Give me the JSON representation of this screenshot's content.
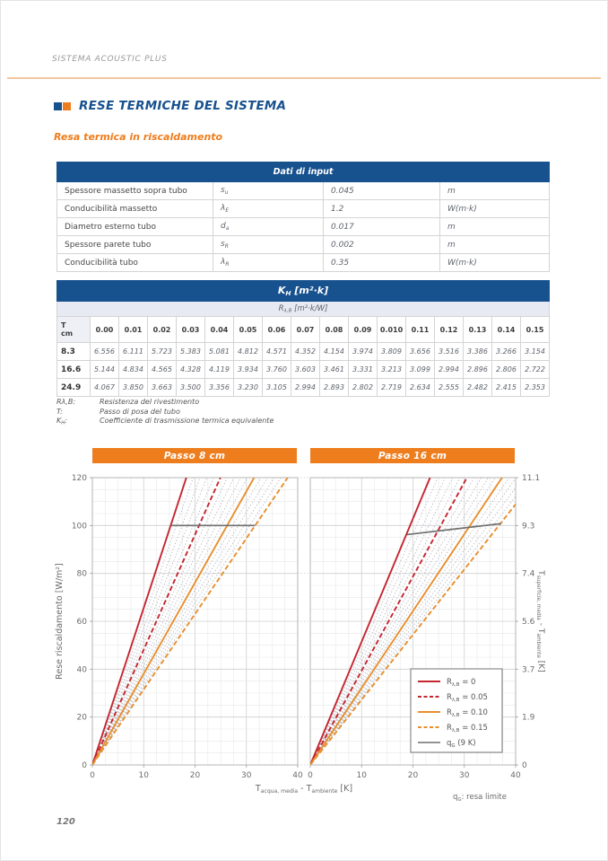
{
  "page": {
    "header_text": "SISTEMA ACOUSTIC PLUS",
    "section_title": "RESE TERMICHE DEL SISTEMA",
    "subsection_title": "Resa termica in riscaldamento",
    "page_number": "120"
  },
  "colors": {
    "blue": "#17518e",
    "orange": "#ee7d1d",
    "red_line": "#c42630",
    "orange_line": "#e78f2e",
    "gray_line": "#6f6f6f",
    "fan_line": "#a9adb8",
    "band_light": "#e8eaf3",
    "header_rule": "#f2c79c"
  },
  "input_table": {
    "title": "Dati di input",
    "rows": [
      {
        "label": "Spessore massetto sopra tubo",
        "symbol": [
          {
            "t": "s"
          },
          {
            "s": "u"
          }
        ],
        "value": "0.045",
        "unit": "m"
      },
      {
        "label": "Conducibilità massetto",
        "symbol": [
          {
            "t": "λ"
          },
          {
            "s": "E"
          }
        ],
        "value": "1.2",
        "unit": "W(m·k)"
      },
      {
        "label": "Diametro esterno tubo",
        "symbol": [
          {
            "t": "d"
          },
          {
            "s": "a"
          }
        ],
        "value": "0.017",
        "unit": "m"
      },
      {
        "label": "Spessore parete tubo",
        "symbol": [
          {
            "t": "s"
          },
          {
            "s": "R"
          }
        ],
        "value": "0.002",
        "unit": "m"
      },
      {
        "label": "Conducibilità tubo",
        "symbol": [
          {
            "t": "λ"
          },
          {
            "s": "R"
          }
        ],
        "value": "0.35",
        "unit": "W(m·k)"
      }
    ]
  },
  "kh_table": {
    "title": [
      {
        "t": "K"
      },
      {
        "s": "H"
      },
      {
        "t": " [m²·k]"
      }
    ],
    "subtitle": [
      {
        "t": "R"
      },
      {
        "s": "λ,B"
      },
      {
        "t": " [m²·k/W]"
      }
    ],
    "corner_line1": "T",
    "corner_line2": "cm",
    "columns": [
      "0.00",
      "0.01",
      "0.02",
      "0.03",
      "0.04",
      "0.05",
      "0.06",
      "0.07",
      "0.08",
      "0.09",
      "0.010",
      "0.11",
      "0.12",
      "0.13",
      "0.14",
      "0.15"
    ],
    "rows": [
      {
        "t": "8.3",
        "values": [
          "6.556",
          "6.111",
          "5.723",
          "5.383",
          "5.081",
          "4.812",
          "4.571",
          "4.352",
          "4.154",
          "3.974",
          "3.809",
          "3.656",
          "3.516",
          "3.386",
          "3.266",
          "3.154"
        ]
      },
      {
        "t": "16.6",
        "values": [
          "5.144",
          "4.834",
          "4.565",
          "4.328",
          "4.119",
          "3.934",
          "3.760",
          "3.603",
          "3.461",
          "3.331",
          "3.213",
          "3.099",
          "2.994",
          "2.896",
          "2.806",
          "2.722"
        ]
      },
      {
        "t": "24.9",
        "values": [
          "4.067",
          "3.850",
          "3.663",
          "3.500",
          "3.356",
          "3.230",
          "3.105",
          "2.994",
          "2.893",
          "2.802",
          "2.719",
          "2.634",
          "2.555",
          "2.482",
          "2.415",
          "2.353"
        ]
      }
    ]
  },
  "footnotes": [
    {
      "term": [
        {
          "t": "Rλ,B:"
        }
      ],
      "def": "Resistenza del rivestimento"
    },
    {
      "term": [
        {
          "t": "T:"
        }
      ],
      "def": "Passo di posa del tubo"
    },
    {
      "term": [
        {
          "t": "K"
        },
        {
          "s": "H"
        },
        {
          "t": ":"
        }
      ],
      "def": "Coefficiente di trasmissione termica equivalente"
    }
  ],
  "chart_data": {
    "type": "line",
    "xlabel": [
      {
        "t": "T"
      },
      {
        "s": "acqua, media"
      },
      {
        "t": " - T"
      },
      {
        "s": "ambiente"
      },
      {
        "t": " [K]"
      }
    ],
    "ylabel_left": "Rese riscaldamento [W/m²]",
    "ylabel_right": [
      {
        "t": "T"
      },
      {
        "s": "superficie, media"
      },
      {
        "t": " - T"
      },
      {
        "s": "ambiente"
      },
      {
        "t": " [K]"
      }
    ],
    "note": [
      {
        "t": "q"
      },
      {
        "s": "G"
      },
      {
        "t": ": resa limite"
      }
    ],
    "xlim": [
      0,
      40
    ],
    "ylim": [
      0,
      120
    ],
    "x_ticks": [
      0,
      10,
      20,
      30,
      40
    ],
    "y_ticks_left": [
      0,
      20,
      40,
      60,
      80,
      100,
      120
    ],
    "y_ticks_right": [
      "0",
      "1.9",
      "3.7",
      "5.6",
      "7.4",
      "9.3",
      "11.1"
    ],
    "grid": true,
    "legend_position": "lower-right-of-second-plot",
    "legend": [
      {
        "label": [
          {
            "t": "R"
          },
          {
            "s": "λ,B"
          },
          {
            "t": " = 0"
          }
        ],
        "color": "#c42630",
        "dash": "solid"
      },
      {
        "label": [
          {
            "t": "R"
          },
          {
            "s": "λ,B"
          },
          {
            "t": " = 0.05"
          }
        ],
        "color": "#c42630",
        "dash": "dashed"
      },
      {
        "label": [
          {
            "t": "R"
          },
          {
            "s": "λ,B"
          },
          {
            "t": " = 0.10"
          }
        ],
        "color": "#e78f2e",
        "dash": "solid"
      },
      {
        "label": [
          {
            "t": "R"
          },
          {
            "s": "λ,B"
          },
          {
            "t": " = 0.15"
          }
        ],
        "color": "#e78f2e",
        "dash": "dashed"
      },
      {
        "label": [
          {
            "t": "q"
          },
          {
            "s": "G"
          },
          {
            "t": " (9 K)"
          }
        ],
        "color": "#6f6f6f",
        "dash": "solid"
      }
    ],
    "plots": [
      {
        "title": "Passo 8 cm",
        "series": [
          {
            "name": "R_λ,B = 0",
            "slope": 6.556,
            "color": "#c42630",
            "dash": "solid"
          },
          {
            "name": "R_λ,B = 0.05",
            "slope": 4.812,
            "color": "#c42630",
            "dash": "dashed"
          },
          {
            "name": "R_λ,B = 0.10",
            "slope": 3.809,
            "color": "#e78f2e",
            "dash": "solid"
          },
          {
            "name": "R_λ,B = 0.15",
            "slope": 3.154,
            "color": "#e78f2e",
            "dash": "dashed"
          }
        ],
        "fan_slopes": [
          6.111,
          5.723,
          5.383,
          5.081,
          4.571,
          4.352,
          4.154,
          3.974,
          3.656,
          3.516,
          3.386,
          3.266
        ],
        "limit_line": {
          "name": "q_G (9 K)",
          "points": [
            [
              15.3,
              100
            ],
            [
              31.7,
              100
            ]
          ]
        }
      },
      {
        "title": "Passo 16 cm",
        "series": [
          {
            "name": "R_λ,B = 0",
            "slope": 5.144,
            "color": "#c42630",
            "dash": "solid"
          },
          {
            "name": "R_λ,B = 0.05",
            "slope": 3.934,
            "color": "#c42630",
            "dash": "dashed"
          },
          {
            "name": "R_λ,B = 0.10",
            "slope": 3.213,
            "color": "#e78f2e",
            "dash": "solid"
          },
          {
            "name": "R_λ,B = 0.15",
            "slope": 2.722,
            "color": "#e78f2e",
            "dash": "dashed"
          }
        ],
        "fan_slopes": [
          4.834,
          4.565,
          4.328,
          4.119,
          3.76,
          3.603,
          3.461,
          3.331,
          3.099,
          2.994,
          2.896,
          2.806
        ],
        "limit_line": {
          "name": "q_G (9 K)",
          "points": [
            [
              18.8,
              96.2
            ],
            [
              37.2,
              100.8
            ]
          ]
        }
      }
    ]
  }
}
